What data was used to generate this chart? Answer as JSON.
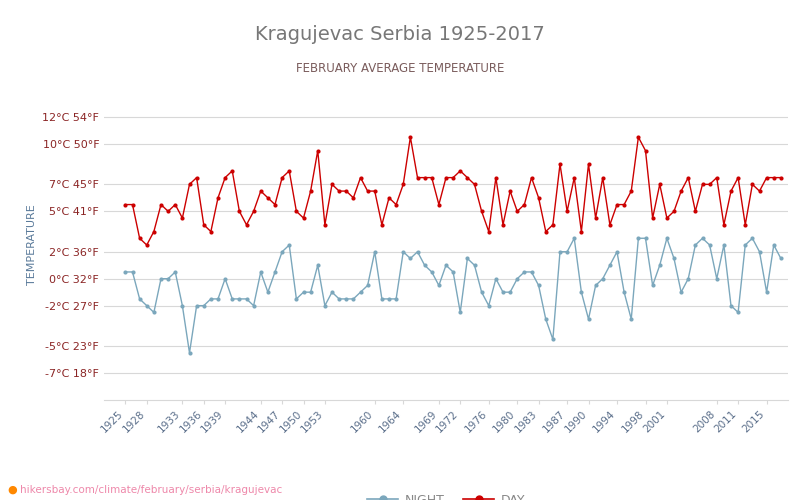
{
  "title": "Kragujevac Serbia 1925-2017",
  "subtitle": "FEBRUARY AVERAGE TEMPERATURE",
  "ylabel": "TEMPERATURE",
  "xlabel_url": "hikersbay.com/climate/february/serbia/kragujevac",
  "years": [
    1925,
    1926,
    1927,
    1928,
    1929,
    1930,
    1931,
    1932,
    1933,
    1934,
    1935,
    1936,
    1937,
    1938,
    1939,
    1940,
    1941,
    1942,
    1943,
    1944,
    1945,
    1946,
    1947,
    1948,
    1949,
    1950,
    1951,
    1952,
    1953,
    1954,
    1955,
    1956,
    1957,
    1958,
    1959,
    1960,
    1961,
    1962,
    1963,
    1964,
    1965,
    1966,
    1967,
    1968,
    1969,
    1970,
    1971,
    1972,
    1973,
    1974,
    1975,
    1976,
    1977,
    1978,
    1979,
    1980,
    1981,
    1982,
    1983,
    1984,
    1985,
    1986,
    1987,
    1988,
    1989,
    1990,
    1991,
    1992,
    1993,
    1994,
    1995,
    1996,
    1997,
    1998,
    1999,
    2000,
    2001,
    2002,
    2003,
    2004,
    2005,
    2006,
    2007,
    2008,
    2009,
    2010,
    2011,
    2012,
    2013,
    2014,
    2015,
    2016,
    2017
  ],
  "day_temps": [
    5.5,
    5.5,
    3.0,
    2.5,
    3.5,
    5.5,
    5.0,
    5.5,
    4.5,
    7.0,
    7.5,
    4.0,
    3.5,
    6.0,
    7.5,
    8.0,
    5.0,
    4.0,
    5.0,
    6.5,
    6.0,
    5.5,
    7.5,
    8.0,
    5.0,
    4.5,
    6.5,
    9.5,
    4.0,
    7.0,
    6.5,
    6.5,
    6.0,
    7.5,
    6.5,
    6.5,
    4.0,
    6.0,
    5.5,
    7.0,
    10.5,
    7.5,
    7.5,
    7.5,
    5.5,
    7.5,
    7.5,
    8.0,
    7.5,
    7.0,
    5.0,
    3.5,
    7.5,
    4.0,
    6.5,
    5.0,
    5.5,
    7.5,
    6.0,
    3.5,
    4.0,
    8.5,
    5.0,
    7.5,
    3.5,
    8.5,
    4.5,
    7.5,
    4.0,
    5.5,
    5.5,
    6.5,
    10.5,
    9.5,
    4.5,
    7.0,
    4.5,
    5.0,
    6.5,
    7.5,
    5.0,
    7.0,
    7.0,
    7.5,
    4.0,
    6.5,
    7.5,
    4.0,
    7.0,
    6.5,
    7.5,
    7.5,
    7.5
  ],
  "night_temps": [
    0.5,
    0.5,
    -1.5,
    -2.0,
    -2.5,
    0.0,
    0.0,
    0.5,
    -2.0,
    -5.5,
    -2.0,
    -2.0,
    -1.5,
    -1.5,
    0.0,
    -1.5,
    -1.5,
    -1.5,
    -2.0,
    0.5,
    -1.0,
    0.5,
    2.0,
    2.5,
    -1.5,
    -1.0,
    -1.0,
    1.0,
    -2.0,
    -1.0,
    -1.5,
    -1.5,
    -1.5,
    -1.0,
    -0.5,
    2.0,
    -1.5,
    -1.5,
    -1.5,
    2.0,
    1.5,
    2.0,
    1.0,
    0.5,
    -0.5,
    1.0,
    0.5,
    -2.5,
    1.5,
    1.0,
    -1.0,
    -2.0,
    0.0,
    -1.0,
    -1.0,
    0.0,
    0.5,
    0.5,
    -0.5,
    -3.0,
    -4.5,
    2.0,
    2.0,
    3.0,
    -1.0,
    -3.0,
    -0.5,
    0.0,
    1.0,
    2.0,
    -1.0,
    -3.0,
    3.0,
    3.0,
    -0.5,
    1.0,
    3.0,
    1.5,
    -1.0,
    0.0,
    2.5,
    3.0,
    2.5,
    0.0,
    2.5,
    -2.0,
    -2.5,
    2.5,
    3.0,
    2.0,
    -1.0,
    2.5,
    1.5
  ],
  "yticks_c": [
    -7,
    -5,
    -2,
    0,
    2,
    5,
    7,
    10,
    12
  ],
  "yticks_f": [
    18,
    23,
    27,
    32,
    36,
    41,
    45,
    50,
    54
  ],
  "xticks": [
    1925,
    1928,
    1933,
    1936,
    1939,
    1944,
    1947,
    1950,
    1953,
    1960,
    1964,
    1969,
    1972,
    1976,
    1980,
    1983,
    1987,
    1990,
    1994,
    1998,
    2001,
    2008,
    2011,
    2015
  ],
  "day_color": "#cc0000",
  "night_color": "#7ba7bc",
  "background_color": "#ffffff",
  "grid_color": "#d8d8d8",
  "title_color": "#777777",
  "subtitle_color": "#7a5c5c",
  "ylabel_color": "#5a7a9a",
  "ytick_color": "#8b2525",
  "xtick_color": "#5a6e8a",
  "url_color": "#ee88aa",
  "url_dot_color": "#ff8800"
}
